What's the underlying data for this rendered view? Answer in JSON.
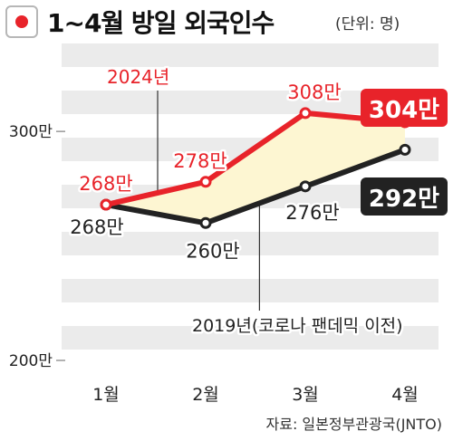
{
  "header": {
    "title": "1~4월  방일 외국인수",
    "unit": "(단위: 명)"
  },
  "source": "자료: 일본정부관광국(JNTO)",
  "colors": {
    "series_2024": "#e8232a",
    "series_2019": "#222222",
    "fill_between": "#fdf6d2",
    "band": "#ebebeb",
    "flag_red": "#e8232a"
  },
  "chart_data": {
    "type": "line",
    "categories": [
      "1월",
      "2월",
      "3월",
      "4월"
    ],
    "ylim": [
      200,
      340
    ],
    "y_ticks": [
      200,
      300
    ],
    "y_tick_labels": [
      "200만",
      "300만"
    ],
    "series": [
      {
        "name": "2024년",
        "values": [
          268,
          278,
          308,
          304
        ],
        "labels": [
          "268만",
          "278만",
          "308만",
          "304만"
        ]
      },
      {
        "name": "2019년(코로나 팬데믹 이전)",
        "values": [
          268,
          260,
          276,
          292
        ],
        "labels": [
          "268만",
          "260만",
          "276만",
          "292만"
        ]
      }
    ]
  }
}
